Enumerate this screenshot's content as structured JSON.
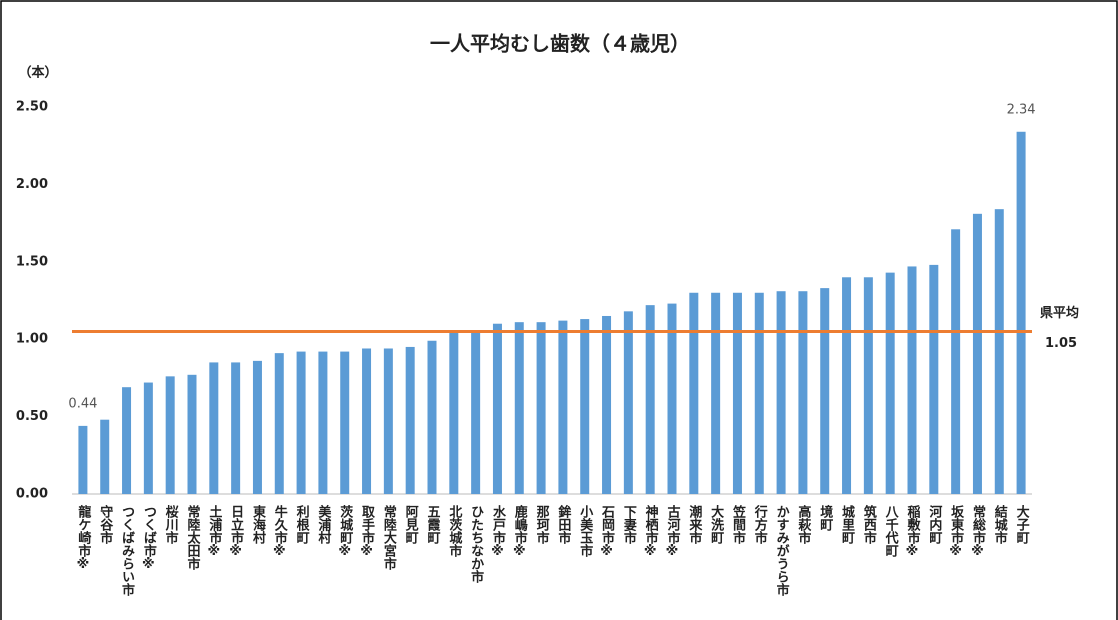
{
  "chart_data": {
    "type": "bar",
    "title": "一人平均むし歯数（４歳児）",
    "y_unit_label": "（本）",
    "categories": [
      "龍ケ崎市※",
      "守谷市",
      "つくばみらい市",
      "つくば市※",
      "桜川市",
      "常陸太田市",
      "土浦市※",
      "日立市※",
      "東海村",
      "牛久市※",
      "利根町",
      "美浦村",
      "茨城町※",
      "取手市※",
      "常陸大宮市",
      "阿見町",
      "五霞町",
      "北茨城市",
      "ひたちなか市",
      "水戸市※",
      "鹿嶋市※",
      "那珂市",
      "鉾田市",
      "小美玉市",
      "石岡市※",
      "下妻市",
      "神栖市※",
      "古河市※",
      "潮来市",
      "大洗町",
      "笠間市",
      "行方市",
      "かすみがうら市",
      "高萩市",
      "境町",
      "城里町",
      "筑西市",
      "八千代町",
      "稲敷市※",
      "河内町",
      "坂東市※",
      "常総市※",
      "結城市",
      "大子町"
    ],
    "values": [
      0.44,
      0.48,
      0.69,
      0.72,
      0.76,
      0.77,
      0.85,
      0.85,
      0.86,
      0.91,
      0.92,
      0.92,
      0.92,
      0.94,
      0.94,
      0.95,
      0.99,
      1.04,
      1.05,
      1.1,
      1.11,
      1.11,
      1.12,
      1.13,
      1.15,
      1.18,
      1.22,
      1.23,
      1.3,
      1.3,
      1.3,
      1.3,
      1.31,
      1.31,
      1.33,
      1.4,
      1.4,
      1.43,
      1.47,
      1.48,
      1.71,
      1.81,
      1.84,
      2.34
    ],
    "value_labels": [
      "0.44",
      null,
      null,
      null,
      null,
      null,
      null,
      null,
      null,
      null,
      null,
      null,
      null,
      null,
      null,
      null,
      null,
      null,
      null,
      null,
      null,
      null,
      null,
      null,
      null,
      null,
      null,
      null,
      null,
      null,
      null,
      null,
      null,
      null,
      null,
      null,
      null,
      null,
      null,
      null,
      null,
      null,
      null,
      "2.34"
    ],
    "color": "#5b9bd5",
    "ylim": [
      0,
      2.5
    ],
    "yticks": [
      {
        "value": 0,
        "label": "0.00"
      },
      {
        "value": 0.5,
        "label": "0.50"
      },
      {
        "value": 1,
        "label": "1.00"
      },
      {
        "value": 1.5,
        "label": "1.50"
      },
      {
        "value": 2,
        "label": "2.00"
      },
      {
        "value": 2.5,
        "label": "2.50"
      }
    ],
    "grid": false,
    "reference_line": {
      "label": "県平均",
      "value": 1.05,
      "color": "#ed7d31"
    }
  }
}
